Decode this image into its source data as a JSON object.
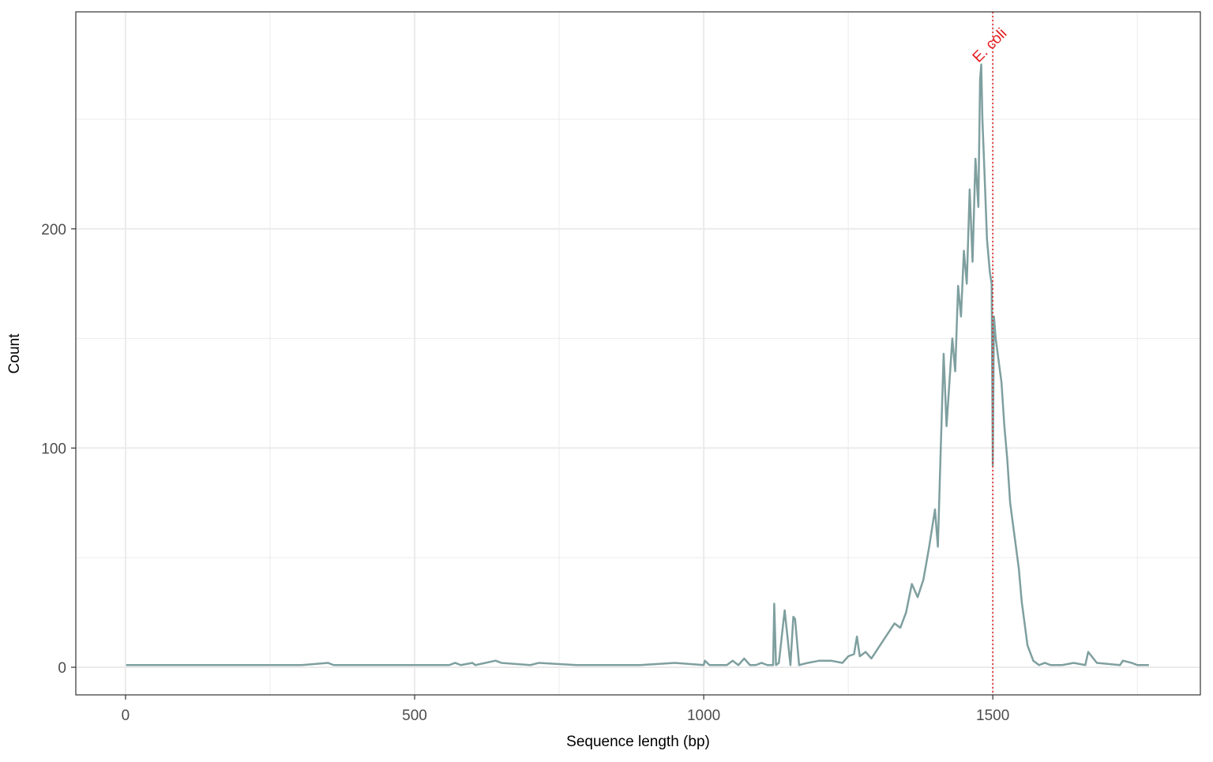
{
  "chart_data": {
    "type": "line",
    "x_label": "Sequence length (bp)",
    "y_label": "Count",
    "x": [
      1,
      305,
      350,
      360,
      560,
      570,
      580,
      600,
      605,
      640,
      650,
      700,
      715,
      780,
      860,
      890,
      950,
      1000,
      1002,
      1010,
      1040,
      1050,
      1060,
      1070,
      1080,
      1090,
      1100,
      1110,
      1120,
      1122,
      1125,
      1130,
      1140,
      1150,
      1155,
      1158,
      1165,
      1180,
      1200,
      1220,
      1240,
      1250,
      1260,
      1265,
      1270,
      1280,
      1290,
      1300,
      1310,
      1320,
      1330,
      1340,
      1350,
      1360,
      1370,
      1380,
      1390,
      1400,
      1405,
      1410,
      1415,
      1420,
      1425,
      1430,
      1435,
      1440,
      1445,
      1450,
      1455,
      1460,
      1465,
      1470,
      1475,
      1478,
      1480,
      1482,
      1485,
      1490,
      1495,
      1498,
      1500,
      1502,
      1505,
      1510,
      1515,
      1520,
      1525,
      1530,
      1535,
      1540,
      1545,
      1550,
      1560,
      1570,
      1580,
      1590,
      1600,
      1620,
      1640,
      1660,
      1665,
      1680,
      1720,
      1725,
      1740,
      1750,
      1770
    ],
    "series": [
      {
        "color": "#7f9f9f",
        "values": [
          1,
          1,
          2,
          1,
          1,
          2,
          1,
          2,
          1,
          3,
          2,
          1,
          2,
          1,
          1,
          1,
          2,
          1,
          3,
          1,
          1,
          3,
          1,
          4,
          1,
          1,
          2,
          1,
          1,
          29,
          1,
          2,
          26,
          1,
          23,
          22,
          1,
          2,
          3,
          3,
          2,
          5,
          6,
          14,
          5,
          7,
          4,
          8,
          12,
          16,
          20,
          18,
          25,
          38,
          32,
          40,
          55,
          72,
          55,
          100,
          143,
          110,
          130,
          150,
          135,
          174,
          160,
          190,
          175,
          218,
          185,
          232,
          210,
          268,
          275,
          250,
          230,
          195,
          180,
          175,
          92,
          160,
          150,
          140,
          130,
          110,
          95,
          75,
          65,
          55,
          45,
          30,
          10,
          3,
          1,
          2,
          1,
          1,
          2,
          1,
          7,
          2,
          1,
          3,
          2,
          1,
          1
        ]
      }
    ],
    "xlim": [
      -86,
      1859
    ],
    "ylim": [
      -12.6,
      299
    ],
    "xticks": [
      0,
      500,
      1000,
      1500
    ],
    "yticks": [
      0,
      100,
      200
    ],
    "x_minor_grid": [
      250,
      750,
      1250,
      1750
    ],
    "y_minor_grid": [
      50,
      150,
      250
    ],
    "grid": true,
    "reference_line": {
      "x": 1500,
      "label": "E. coli",
      "color": "#e41a1c"
    }
  }
}
